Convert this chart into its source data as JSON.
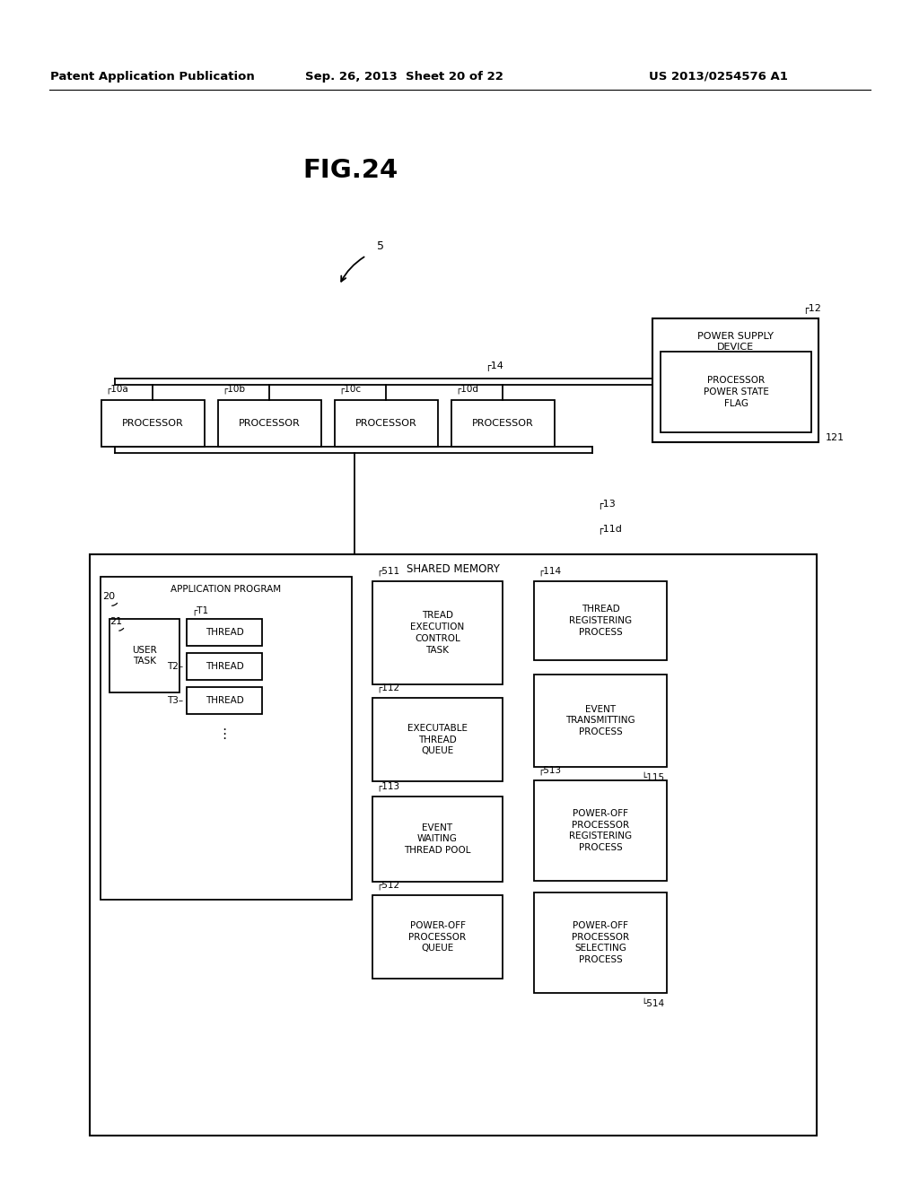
{
  "bg_color": "#ffffff",
  "header_left": "Patent Application Publication",
  "header_center": "Sep. 26, 2013  Sheet 20 of 22",
  "header_right": "US 2013/0254576 A1",
  "fig_title": "FIG.24",
  "fig_label": "5",
  "power_supply_title": "POWER SUPPLY\nDEVICE",
  "power_state_flag": "PROCESSOR\nPOWER STATE\nFLAG",
  "power_state_label": "121",
  "power_supply_ref": "12",
  "bus_ref": "14",
  "shared_mem_bus_ref": "13",
  "shared_mem_connector_ref": "11d",
  "processors": [
    "PROCESSOR",
    "PROCESSOR",
    "PROCESSOR",
    "PROCESSOR"
  ],
  "processor_refs": [
    "10a",
    "10b",
    "10c",
    "10d"
  ],
  "shared_memory_title": "SHARED MEMORY",
  "app_program_ref": "20",
  "app_program_title": "APPLICATION PROGRAM",
  "user_task_ref": "21",
  "user_task_title": "USER\nTASK",
  "thread_title": "THREAD",
  "thread_refs": [
    "T1",
    "T2",
    "T3"
  ],
  "tect_ref": "511",
  "tect_title": "TREAD\nEXECUTION\nCONTROL\nTASK",
  "etq_ref": "112",
  "etq_title": "EXECUTABLE\nTHREAD\nQUEUE",
  "ewtp_ref": "113",
  "ewtp_title": "EVENT\nWAITING\nTHREAD POOL",
  "poq_ref": "512",
  "poq_title": "POWER-OFF\nPROCESSOR\nQUEUE",
  "trp_ref": "114",
  "trp_title": "THREAD\nREGISTERING\nPROCESS",
  "etp_ref": "115",
  "etp_title": "EVENT\nTRANSMITTING\nPROCESS",
  "popr_ref": "513",
  "popr_title": "POWER-OFF\nPROCESSOR\nREGISTERING\nPROCESS",
  "pops_ref": "514",
  "pops_title": "POWER-OFF\nPROCESSOR\nSELECTING\nPROCESS"
}
